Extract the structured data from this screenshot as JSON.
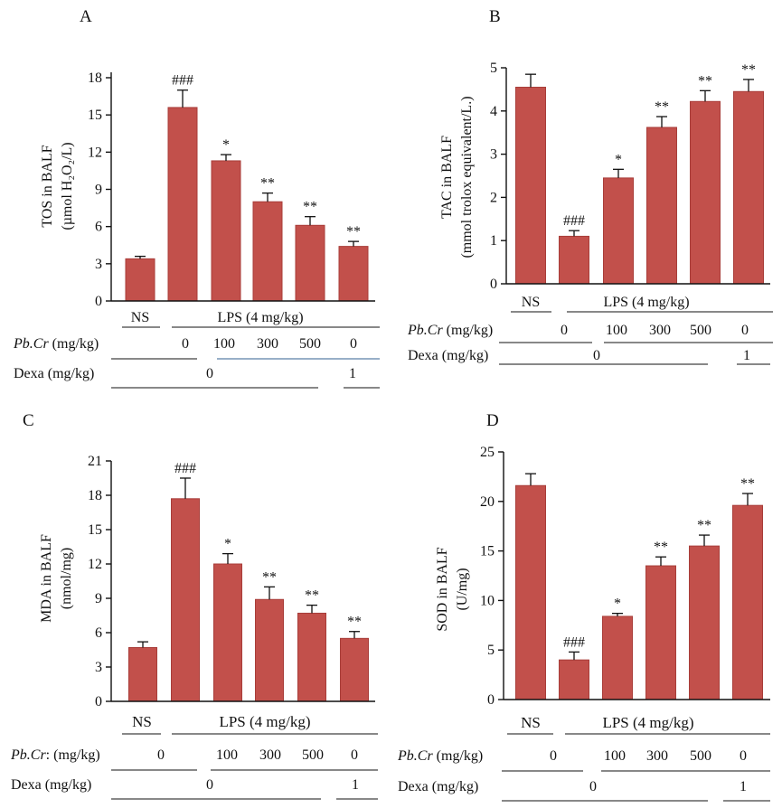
{
  "chart_data": [
    {
      "panel": "A",
      "type": "bar",
      "title": "",
      "ylabel_line1": "TOS in BALF",
      "ylabel_line2": "(µmol H₂O₂/L)",
      "ylim": [
        0,
        18
      ],
      "yticks": [
        0,
        3,
        6,
        9,
        12,
        15,
        18
      ],
      "values": [
        3.4,
        15.6,
        11.3,
        8.0,
        6.1,
        4.4
      ],
      "errors": [
        0.2,
        1.4,
        0.5,
        0.7,
        0.7,
        0.4
      ],
      "sig": [
        "",
        "###",
        "*",
        "**",
        "**",
        "**"
      ],
      "ns_label": "NS",
      "lps_label": "LPS (4 mg/kg)",
      "pbcr_label_italic": "Pb.Cr",
      "pbcr_label_unit": " (mg/kg)",
      "pbcr_values": [
        "0",
        "100",
        "300",
        "500",
        "0"
      ],
      "dexa_label": "Dexa (mg/kg)",
      "dexa_values": [
        "0",
        "1"
      ]
    },
    {
      "panel": "B",
      "type": "bar",
      "title": "",
      "ylabel_line1": "TAC in BALF",
      "ylabel_line2": "(mmol trolox equivalent/L.)",
      "ylim": [
        0,
        5
      ],
      "yticks": [
        0,
        1,
        2,
        3,
        4,
        5
      ],
      "values": [
        4.55,
        1.1,
        2.45,
        3.62,
        4.22,
        4.45
      ],
      "errors": [
        0.3,
        0.13,
        0.2,
        0.25,
        0.25,
        0.28
      ],
      "sig": [
        "",
        "###",
        "*",
        "**",
        "**",
        "**"
      ],
      "ns_label": "NS",
      "lps_label": "LPS (4 mg/kg)",
      "pbcr_label_italic": "Pb.Cr",
      "pbcr_label_unit": "  (mg/kg)",
      "pbcr_values": [
        "0",
        "100",
        "300",
        "500",
        "0"
      ],
      "dexa_label": "Dexa (mg/kg)",
      "dexa_values": [
        "0",
        "1"
      ]
    },
    {
      "panel": "C",
      "type": "bar",
      "title": "",
      "ylabel_line1": "MDA in BALF",
      "ylabel_line2": "(nmol/mg)",
      "ylim": [
        0,
        21
      ],
      "yticks": [
        0,
        3,
        6,
        9,
        12,
        15,
        18,
        21
      ],
      "values": [
        4.7,
        17.7,
        12.0,
        8.9,
        7.7,
        5.5
      ],
      "errors": [
        0.5,
        1.8,
        0.9,
        1.1,
        0.7,
        0.6
      ],
      "sig": [
        "",
        "###",
        "*",
        "**",
        "**",
        "**"
      ],
      "ns_label": "NS",
      "lps_label": "LPS (4 mg/kg)",
      "pbcr_label_italic": "Pb.Cr",
      "pbcr_label_unit": ": (mg/kg)",
      "pbcr_values": [
        "0",
        "100",
        "300",
        "500",
        "0"
      ],
      "dexa_label": "Dexa  (mg/kg)",
      "dexa_values": [
        "0",
        "1"
      ]
    },
    {
      "panel": "D",
      "type": "bar",
      "title": "",
      "ylabel_line1": "SOD in BALF",
      "ylabel_line2": "(U/mg)",
      "ylim": [
        0,
        25
      ],
      "yticks": [
        0,
        5,
        10,
        15,
        20,
        25
      ],
      "values": [
        21.6,
        4.0,
        8.4,
        13.5,
        15.5,
        19.6
      ],
      "errors": [
        1.2,
        0.8,
        0.3,
        0.9,
        1.1,
        1.2
      ],
      "sig": [
        "",
        "###",
        "*",
        "**",
        "**",
        "**"
      ],
      "ns_label": "NS",
      "lps_label": "LPS (4 mg/kg)",
      "pbcr_label_italic": "Pb.Cr",
      "pbcr_label_unit": " (mg/kg)",
      "pbcr_values": [
        "0",
        "100",
        "300",
        "500",
        "0"
      ],
      "dexa_label": "Dexa (mg/kg)",
      "dexa_values": [
        "0",
        "1"
      ]
    }
  ],
  "colors": {
    "bar": "#c2504b",
    "bar_edge": "#a83d39",
    "axis": "#111111",
    "rule_blue": "#5b7fa6"
  }
}
